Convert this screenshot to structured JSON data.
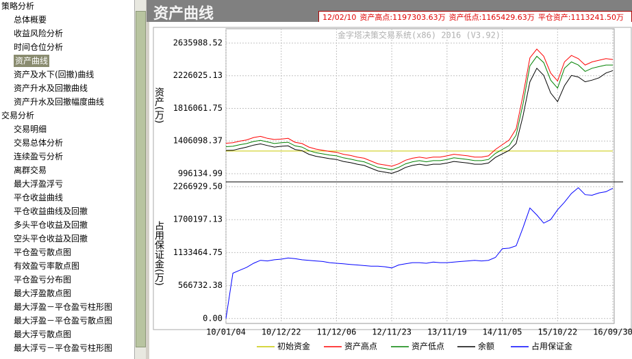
{
  "sidebar": {
    "groups": [
      {
        "label": "策略分析",
        "items": [
          "总体概要",
          "收益风险分析",
          "时间仓位分析",
          "资产曲线",
          "资产及水下(回撤)曲线",
          "资产升水及回撤曲线",
          "资产升水及回撤幅度曲线"
        ]
      },
      {
        "label": "交易分析",
        "items": [
          "交易明细",
          "交易总体分析",
          "连续盈亏分析",
          "离群交易",
          "最大浮盈浮亏",
          "平仓收益曲线",
          "平仓收益曲线及回撤",
          "多头平仓收益及回撤",
          "空头平仓收益及回撤",
          "平仓盈亏散点图",
          "有效盈亏率散点图",
          "平仓盈亏分布图",
          "最大浮盈散点图",
          "最大浮盈－平仓盈亏柱形图",
          "最大浮盈－平仓盈亏散点图",
          "最大浮亏散点图",
          "最大浮亏－平仓盈亏柱形图"
        ]
      }
    ]
  },
  "header": {
    "title": "资产曲线",
    "info": [
      "12/02/10",
      "资产高点:1197303.63万",
      "资产低点:1165429.63万",
      "平仓资产:1113241.50万"
    ]
  },
  "chart_data": [
    {
      "type": "line",
      "title": "金字塔决策交易系统(x86) 2016 (V3.92)",
      "y_label": "资产(万)",
      "ylim": [
        893000,
        2816000
      ],
      "yticks": [
        996134.99,
        1406098.37,
        1816061.75,
        2226025.13,
        2635988.52
      ],
      "grid": true,
      "series": [
        {
          "name": "初始资金",
          "color": "#c8c800",
          "values": [
            1280000,
            1280000,
            1280000,
            1280000,
            1280000,
            1280000,
            1280000,
            1280000,
            1280000,
            1280000,
            1280000,
            1280000,
            1280000,
            1280000,
            1280000,
            1280000,
            1280000,
            1280000,
            1280000,
            1280000,
            1280000,
            1280000,
            1280000,
            1280000,
            1280000,
            1280000,
            1280000,
            1280000,
            1280000,
            1280000,
            1280000,
            1280000,
            1280000,
            1280000,
            1280000,
            1280000,
            1280000,
            1280000,
            1280000,
            1280000,
            1280000,
            1280000,
            1280000,
            1280000,
            1280000,
            1280000,
            1280000,
            1280000,
            1280000,
            1280000,
            1280000,
            1280000,
            1280000,
            1280000,
            1280000,
            1280000,
            1280000
          ]
        },
        {
          "name": "资产高点",
          "color": "#ff0000",
          "values": [
            1378000,
            1385000,
            1405000,
            1420000,
            1450000,
            1465000,
            1440000,
            1425000,
            1430000,
            1440000,
            1390000,
            1375000,
            1330000,
            1305000,
            1290000,
            1275000,
            1265000,
            1240000,
            1225000,
            1205000,
            1190000,
            1155000,
            1120000,
            1105000,
            1090000,
            1120000,
            1165000,
            1190000,
            1205000,
            1190000,
            1205000,
            1205000,
            1220000,
            1240000,
            1230000,
            1220000,
            1205000,
            1205000,
            1220000,
            1300000,
            1360000,
            1420000,
            1560000,
            1980000,
            2450000,
            2560000,
            2470000,
            2260000,
            2160000,
            2400000,
            2480000,
            2440000,
            2360000,
            2400000,
            2420000,
            2440000,
            2430000
          ]
        },
        {
          "name": "资产低点",
          "color": "#008000",
          "values": [
            1335000,
            1340000,
            1360000,
            1375000,
            1400000,
            1415000,
            1395000,
            1375000,
            1385000,
            1390000,
            1345000,
            1330000,
            1285000,
            1260000,
            1245000,
            1230000,
            1220000,
            1195000,
            1180000,
            1160000,
            1145000,
            1110000,
            1075000,
            1060000,
            1045000,
            1075000,
            1120000,
            1145000,
            1160000,
            1145000,
            1160000,
            1160000,
            1175000,
            1195000,
            1185000,
            1175000,
            1160000,
            1160000,
            1175000,
            1250000,
            1300000,
            1350000,
            1480000,
            1870000,
            2350000,
            2470000,
            2390000,
            2170000,
            2070000,
            2320000,
            2400000,
            2360000,
            2280000,
            2320000,
            2340000,
            2360000,
            2360000
          ]
        },
        {
          "name": "余额",
          "color": "#000000",
          "values": [
            1288000,
            1290000,
            1310000,
            1330000,
            1355000,
            1370000,
            1350000,
            1330000,
            1340000,
            1345000,
            1300000,
            1285000,
            1240000,
            1215000,
            1200000,
            1185000,
            1175000,
            1150000,
            1135000,
            1115000,
            1100000,
            1065000,
            1030000,
            1015000,
            1000000,
            1030000,
            1075000,
            1100000,
            1115000,
            1100000,
            1115000,
            1115000,
            1130000,
            1150000,
            1140000,
            1130000,
            1115000,
            1115000,
            1130000,
            1200000,
            1245000,
            1290000,
            1375000,
            1720000,
            2150000,
            2320000,
            2230000,
            2010000,
            1900000,
            2100000,
            2230000,
            2210000,
            2150000,
            2170000,
            2200000,
            2260000,
            2290000
          ]
        }
      ]
    },
    {
      "type": "line",
      "y_label": "占用保证金(万)",
      "categories": [
        "10/01/04",
        null,
        null,
        null,
        null,
        null,
        null,
        null,
        "10/12/22",
        null,
        null,
        null,
        null,
        null,
        null,
        null,
        "11/12/06",
        null,
        null,
        null,
        null,
        null,
        null,
        null,
        "12/11/23",
        null,
        null,
        null,
        null,
        null,
        null,
        null,
        "13/11/19",
        null,
        null,
        null,
        null,
        null,
        null,
        null,
        "14/11/05",
        null,
        null,
        null,
        null,
        null,
        null,
        null,
        "15/10/22",
        null,
        null,
        null,
        null,
        null,
        null,
        null,
        "16/09/30"
      ],
      "ylim": [
        -85000,
        2326000
      ],
      "yticks": [
        {
          "value": 0,
          "label": "0.00"
        },
        566732.38,
        1133464.75,
        1700197.13,
        {
          "value": 2266929.5,
          "label": "2266929.50"
        }
      ],
      "grid": true,
      "series": [
        {
          "name": "占用保证金",
          "color": "#0000ff",
          "values": [
            0,
            780000,
            830000,
            880000,
            950000,
            1000000,
            990000,
            1010000,
            1020000,
            1040000,
            1030000,
            1010000,
            1000000,
            990000,
            980000,
            960000,
            950000,
            940000,
            930000,
            920000,
            910000,
            900000,
            900000,
            890000,
            870000,
            920000,
            940000,
            960000,
            960000,
            950000,
            970000,
            960000,
            960000,
            970000,
            980000,
            990000,
            1000000,
            990000,
            1000000,
            1050000,
            1200000,
            1210000,
            1250000,
            1560000,
            1900000,
            1780000,
            1640000,
            1700000,
            1870000,
            2000000,
            2150000,
            2250000,
            2130000,
            2120000,
            2160000,
            2180000,
            2240000
          ]
        }
      ]
    }
  ]
}
